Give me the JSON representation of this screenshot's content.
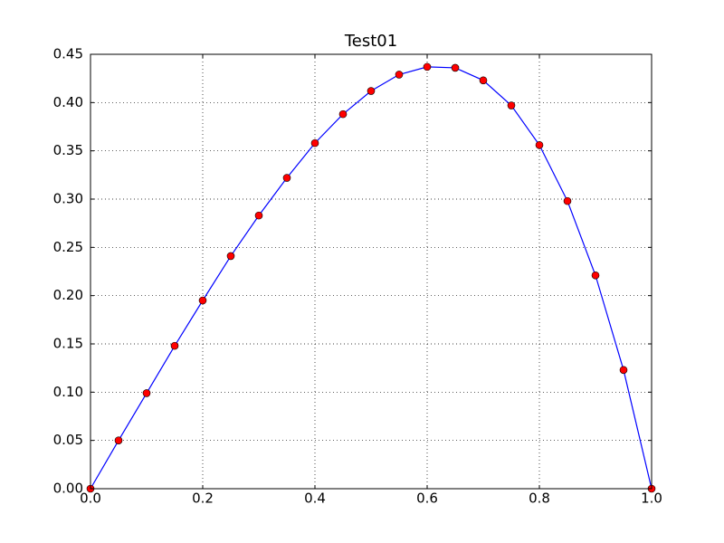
{
  "chart_data": {
    "type": "line",
    "title": "Test01",
    "x": [
      0,
      0.05,
      0.1,
      0.15,
      0.2,
      0.25,
      0.3,
      0.35,
      0.4,
      0.45,
      0.5,
      0.55,
      0.6,
      0.65,
      0.7,
      0.75,
      0.8,
      0.85,
      0.9,
      0.95,
      1.0
    ],
    "values": [
      0,
      0.05,
      0.099,
      0.148,
      0.195,
      0.241,
      0.283,
      0.322,
      0.358,
      0.388,
      0.412,
      0.429,
      0.437,
      0.436,
      0.423,
      0.397,
      0.356,
      0.298,
      0.221,
      0.123,
      0
    ],
    "color": "#0000ff",
    "marker_color": "#ff0000",
    "xlim": [
      0,
      1
    ],
    "ylim": [
      0,
      0.45
    ],
    "xticks": [
      {
        "value": 0,
        "label": "0.0"
      },
      {
        "value": 0.2,
        "label": "0.2"
      },
      {
        "value": 0.4,
        "label": "0.4"
      },
      {
        "value": 0.6,
        "label": "0.6"
      },
      {
        "value": 0.8,
        "label": "0.8"
      },
      {
        "value": 1,
        "label": "1.0"
      }
    ],
    "yticks": [
      {
        "value": 0,
        "label": "0.00"
      },
      {
        "value": 0.05,
        "label": "0.05"
      },
      {
        "value": 0.1,
        "label": "0.10"
      },
      {
        "value": 0.15,
        "label": "0.15"
      },
      {
        "value": 0.2,
        "label": "0.20"
      },
      {
        "value": 0.25,
        "label": "0.25"
      },
      {
        "value": 0.3,
        "label": "0.30"
      },
      {
        "value": 0.35,
        "label": "0.35"
      },
      {
        "value": 0.4,
        "label": "0.40"
      },
      {
        "value": 0.45,
        "label": "0.45"
      }
    ],
    "grid": true
  }
}
